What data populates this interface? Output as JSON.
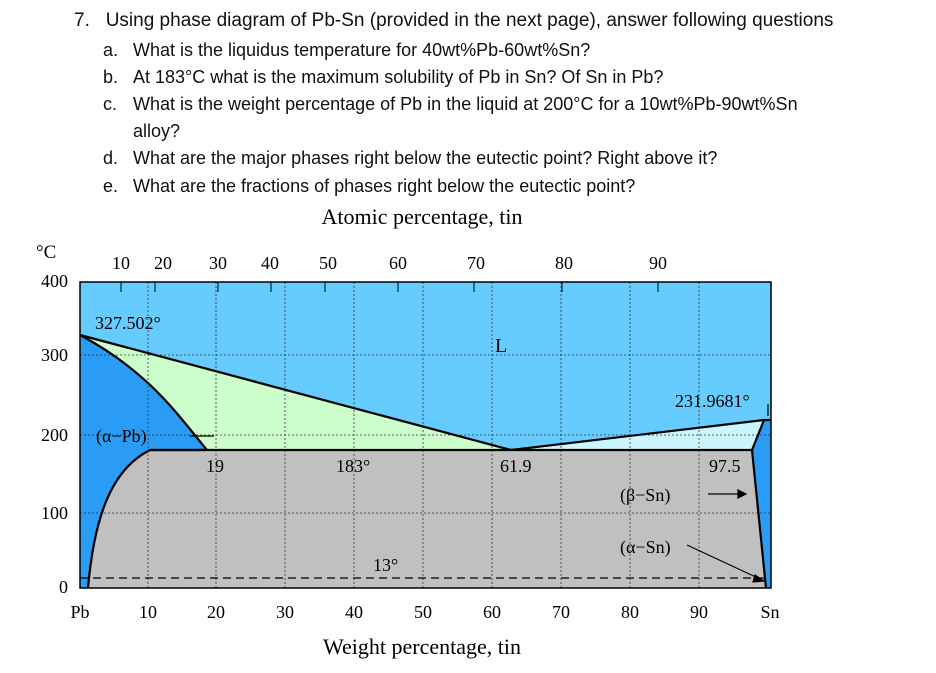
{
  "question": {
    "number": "7.",
    "text": "Using phase diagram of Pb-Sn (provided in the next page), answer following questions",
    "parts": [
      {
        "label": "a.",
        "lines": [
          "What is the liquidus temperature for 40wt%Pb-60wt%Sn?"
        ]
      },
      {
        "label": "b.",
        "lines": [
          "At 183°C what is the maximum solubility of Pb in Sn? Of Sn in Pb?"
        ]
      },
      {
        "label": "c.",
        "lines": [
          "What is the weight percentage of Pb in the liquid at 200°C for a 10wt%Pb-90wt%Sn",
          "alloy?"
        ]
      },
      {
        "label": "d.",
        "lines": [
          "What are the major phases right below the eutectic point? Right above it?"
        ]
      },
      {
        "label": "e.",
        "lines": [
          "What are the fractions of phases right below the eutectic point?"
        ]
      }
    ]
  },
  "diagram": {
    "top_axis_title": "Atomic percentage, tin",
    "bottom_axis_title": "Weight percentage, tin",
    "y_unit": "°C",
    "y_ticks": [
      "400",
      "300",
      "200",
      "100",
      "0"
    ],
    "top_ticks": [
      "10",
      "20",
      "30",
      "40",
      "50",
      "60",
      "70",
      "80",
      "90"
    ],
    "bottom_ticks": [
      "Pb",
      "10",
      "20",
      "30",
      "40",
      "50",
      "60",
      "70",
      "80",
      "90",
      "Sn"
    ],
    "labels": {
      "pb_melting": "327.502°",
      "liquid": "L",
      "sn_melting": "231.9681°",
      "alpha_pb": "(α−Pb)",
      "alpha_limit": "19",
      "eutectic_temp": "183°",
      "eutectic_comp": "61.9",
      "beta_limit": "97.5",
      "beta_sn": "(β−Sn)",
      "alpha_sn": "(α−Sn)",
      "transition_temp": "13°"
    },
    "colors": {
      "liquid": "#66ccff",
      "alpha": "#2a9cf5",
      "two_phase_liquid": "#ccffcc",
      "two_phase_beta_liquid": "#ccf6ff",
      "solid_mix": "#c0c0c0"
    }
  }
}
